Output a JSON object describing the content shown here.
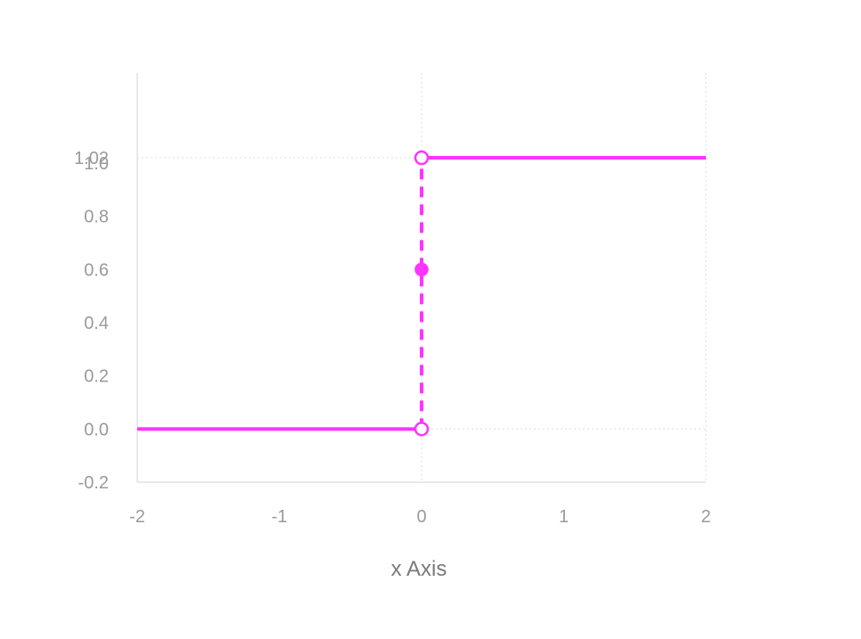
{
  "chart_data": {
    "type": "line",
    "title": "",
    "xlabel": "x Axis",
    "ylabel": "",
    "xlim": [
      -2,
      2
    ],
    "ylim": [
      -0.2,
      1.08
    ],
    "x_ticks": [
      -2,
      -1,
      0,
      1,
      2
    ],
    "x_tick_labels": [
      "-2",
      "-1",
      "0",
      "1",
      "2"
    ],
    "y_ticks": [
      -0.2,
      0.0,
      0.2,
      0.4,
      0.6,
      0.8,
      1.0,
      1.02
    ],
    "y_tick_labels": [
      "-0.2",
      "0.0",
      "0.2",
      "0.4",
      "0.6",
      "0.8",
      "1.0",
      "1.02"
    ],
    "grid": true,
    "color": "#ff33ff",
    "segments": [
      {
        "x": [
          -2,
          0
        ],
        "y": [
          0.0,
          0.0
        ],
        "style": "solid"
      },
      {
        "x": [
          0,
          2
        ],
        "y": [
          1.02,
          1.02
        ],
        "style": "solid"
      },
      {
        "x": [
          0,
          0
        ],
        "y": [
          0.0,
          1.02
        ],
        "style": "dashed"
      }
    ],
    "points": [
      {
        "x": 0,
        "y": 0.0,
        "marker": "open"
      },
      {
        "x": 0,
        "y": 1.02,
        "marker": "open"
      },
      {
        "x": 0,
        "y": 0.6,
        "marker": "filled"
      }
    ]
  }
}
